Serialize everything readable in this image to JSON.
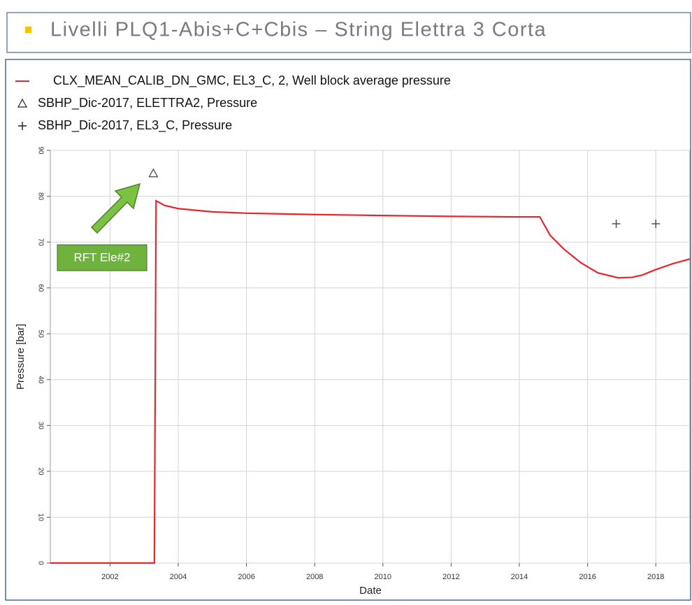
{
  "header": {
    "title": "Livelli PLQ1-Abis+C+Cbis – String Elettra 3 Corta"
  },
  "chart_data": {
    "type": "line",
    "x_label": "Date",
    "y_label": "Pressure [bar]",
    "annotations": [
      "RFT Ele#2"
    ],
    "xlim": [
      2000.25,
      2019
    ],
    "xticks": [
      2002,
      2004,
      2006,
      2008,
      2010,
      2012,
      2014,
      2016,
      2018
    ],
    "ylim": [
      0,
      90
    ],
    "yticks": [
      0,
      10,
      20,
      30,
      40,
      50,
      60,
      70,
      80,
      90
    ],
    "grid": true,
    "series": [
      {
        "name": "CLX_MEAN_CALIB_DN_GMC, EL3_C, 2, Well block average pressure",
        "color": "#e8262b",
        "marker": "line",
        "x": [
          2000.25,
          2003.3,
          2003.35,
          2003.6,
          2004,
          2005,
          2006,
          2008,
          2010,
          2012,
          2014,
          2014.6,
          2014.9,
          2015.3,
          2015.8,
          2016.3,
          2016.9,
          2017.3,
          2017.6,
          2018,
          2018.5,
          2019
        ],
        "values": [
          0,
          0,
          79,
          78,
          77.3,
          76.6,
          76.3,
          76,
          75.8,
          75.6,
          75.5,
          75.5,
          71.5,
          68.5,
          65.5,
          63.3,
          62.2,
          62.3,
          62.8,
          64,
          65.3,
          66.3
        ]
      },
      {
        "name": "SBHP_Dic-2017, ELETTRA2, Pressure",
        "color": "#444444",
        "marker": "triangle",
        "x": [
          2003.27
        ],
        "values": [
          85
        ]
      },
      {
        "name": "SBHP_Dic-2017, EL3_C, Pressure",
        "color": "#444444",
        "marker": "plus",
        "x": [
          2016.84,
          2018
        ],
        "values": [
          74,
          74
        ]
      }
    ]
  }
}
